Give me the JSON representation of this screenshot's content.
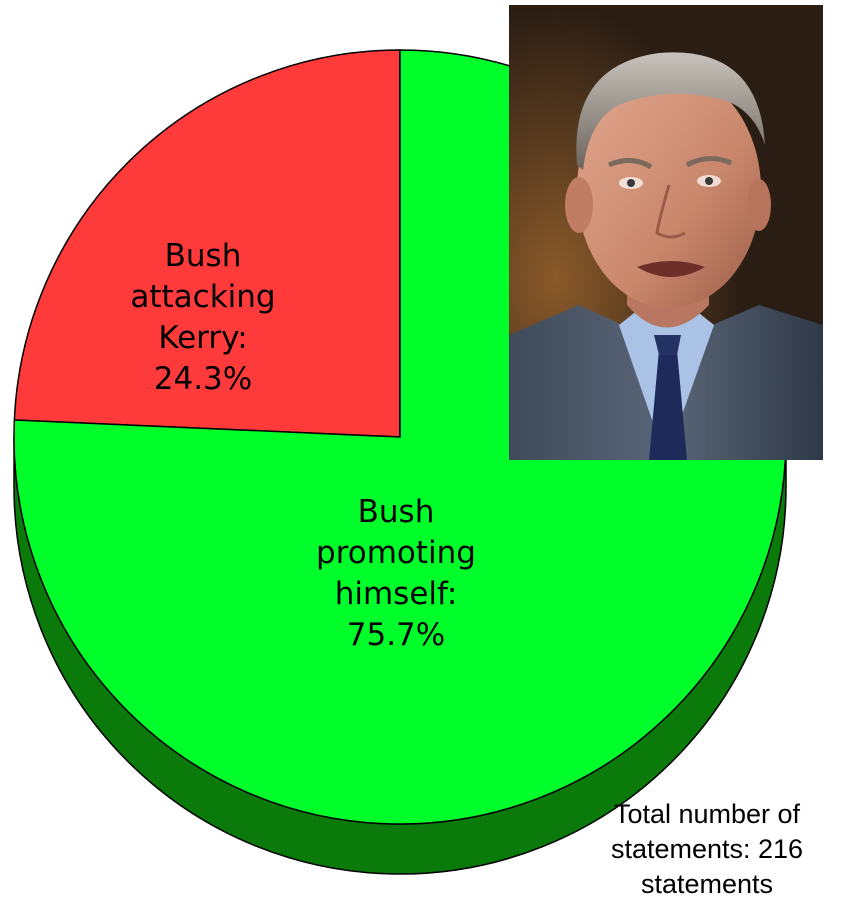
{
  "chart_data": {
    "type": "pie",
    "style": "3d-tilted",
    "slices": [
      {
        "name": "Bush attacking Kerry",
        "value": 24.3,
        "color": "#ff3a3a",
        "label_lines": [
          "Bush",
          "attacking",
          "Kerry:",
          "24.3%"
        ]
      },
      {
        "name": "Bush promoting himself",
        "value": 75.7,
        "color": "#00ff2a",
        "label_lines": [
          "Bush",
          "promoting",
          "himself:",
          "75.7%"
        ]
      }
    ],
    "side_color": "#0a7a0a",
    "annotation_lines": [
      "Total number of",
      "statements: 216",
      "statements"
    ]
  },
  "photo": {
    "subject": "portrait-photo"
  }
}
